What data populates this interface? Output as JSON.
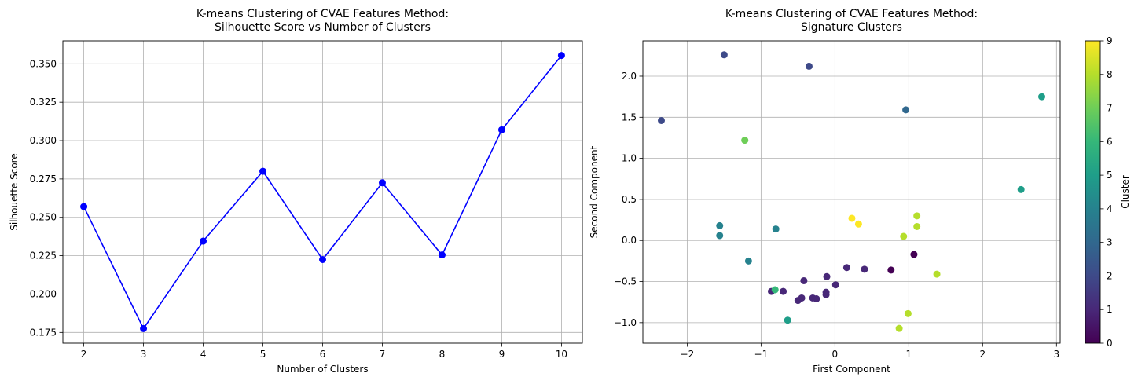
{
  "chart_data": [
    {
      "type": "line",
      "title": "K-means Clustering of CVAE Features Method:\nSilhouette Score vs Number of Clusters",
      "xlabel": "Number of Clusters",
      "ylabel": "Silhouette Score",
      "x": [
        2,
        3,
        4,
        5,
        6,
        7,
        8,
        9,
        10
      ],
      "series": [
        {
          "values": [
            0.257,
            0.1775,
            0.2345,
            0.28,
            0.2225,
            0.2725,
            0.2255,
            0.307,
            0.3555
          ],
          "color": "#0000ff",
          "marker": "circle"
        }
      ],
      "xlim": [
        1.65,
        10.35
      ],
      "ylim": [
        0.168,
        0.365
      ],
      "xticks": [
        "2",
        "3",
        "4",
        "5",
        "6",
        "7",
        "8",
        "9",
        "10"
      ],
      "yticks": [
        "0.175",
        "0.200",
        "0.225",
        "0.250",
        "0.275",
        "0.300",
        "0.325",
        "0.350"
      ],
      "grid": true
    },
    {
      "type": "scatter",
      "title": "K-means Clustering of CVAE Features Method:\nSignature Clusters",
      "xlabel": "First Component",
      "ylabel": "Second Component",
      "xlim": [
        -2.6,
        3.05
      ],
      "ylim": [
        -1.25,
        2.43
      ],
      "xticks": [
        "−2",
        "−1",
        "0",
        "1",
        "2",
        "3"
      ],
      "yticks": [
        "−1.0",
        "−0.5",
        "0.0",
        "0.5",
        "1.0",
        "1.5",
        "2.0"
      ],
      "grid": true,
      "colormap": "viridis",
      "colorbar": {
        "label": "Cluster",
        "min": 0,
        "max": 9,
        "ticks": [
          "0",
          "1",
          "2",
          "3",
          "4",
          "5",
          "6",
          "7",
          "8",
          "9"
        ]
      },
      "points": [
        {
          "x": -1.5,
          "y": 2.26,
          "cluster": 2
        },
        {
          "x": -0.35,
          "y": 2.12,
          "cluster": 2
        },
        {
          "x": -2.35,
          "y": 1.46,
          "cluster": 2
        },
        {
          "x": 0.96,
          "y": 1.59,
          "cluster": 3
        },
        {
          "x": 2.8,
          "y": 1.75,
          "cluster": 5
        },
        {
          "x": -1.22,
          "y": 1.22,
          "cluster": 7
        },
        {
          "x": 2.52,
          "y": 0.62,
          "cluster": 5
        },
        {
          "x": -1.56,
          "y": 0.18,
          "cluster": 4
        },
        {
          "x": -1.56,
          "y": 0.06,
          "cluster": 4
        },
        {
          "x": -0.8,
          "y": 0.14,
          "cluster": 4
        },
        {
          "x": -1.17,
          "y": -0.25,
          "cluster": 4
        },
        {
          "x": 0.23,
          "y": 0.27,
          "cluster": 9
        },
        {
          "x": 0.32,
          "y": 0.2,
          "cluster": 9
        },
        {
          "x": 1.11,
          "y": 0.3,
          "cluster": 8
        },
        {
          "x": 1.11,
          "y": 0.17,
          "cluster": 8
        },
        {
          "x": 0.93,
          "y": 0.05,
          "cluster": 8
        },
        {
          "x": 1.07,
          "y": -0.17,
          "cluster": 0
        },
        {
          "x": 0.76,
          "y": -0.36,
          "cluster": 0
        },
        {
          "x": 0.16,
          "y": -0.33,
          "cluster": 1
        },
        {
          "x": 0.4,
          "y": -0.35,
          "cluster": 1
        },
        {
          "x": -0.11,
          "y": -0.44,
          "cluster": 1
        },
        {
          "x": -0.42,
          "y": -0.49,
          "cluster": 1
        },
        {
          "x": 0.01,
          "y": -0.54,
          "cluster": 1
        },
        {
          "x": -0.86,
          "y": -0.62,
          "cluster": 1
        },
        {
          "x": -0.7,
          "y": -0.62,
          "cluster": 1
        },
        {
          "x": -0.12,
          "y": -0.63,
          "cluster": 1
        },
        {
          "x": -0.12,
          "y": -0.66,
          "cluster": 1
        },
        {
          "x": -0.3,
          "y": -0.7,
          "cluster": 1
        },
        {
          "x": -0.25,
          "y": -0.71,
          "cluster": 1
        },
        {
          "x": -0.45,
          "y": -0.7,
          "cluster": 1
        },
        {
          "x": -0.5,
          "y": -0.73,
          "cluster": 1
        },
        {
          "x": -0.81,
          "y": -0.6,
          "cluster": 6
        },
        {
          "x": -0.64,
          "y": -0.97,
          "cluster": 5
        },
        {
          "x": 1.38,
          "y": -0.41,
          "cluster": 8
        },
        {
          "x": 0.99,
          "y": -0.89,
          "cluster": 8
        },
        {
          "x": 0.87,
          "y": -1.07,
          "cluster": 8
        }
      ]
    }
  ]
}
